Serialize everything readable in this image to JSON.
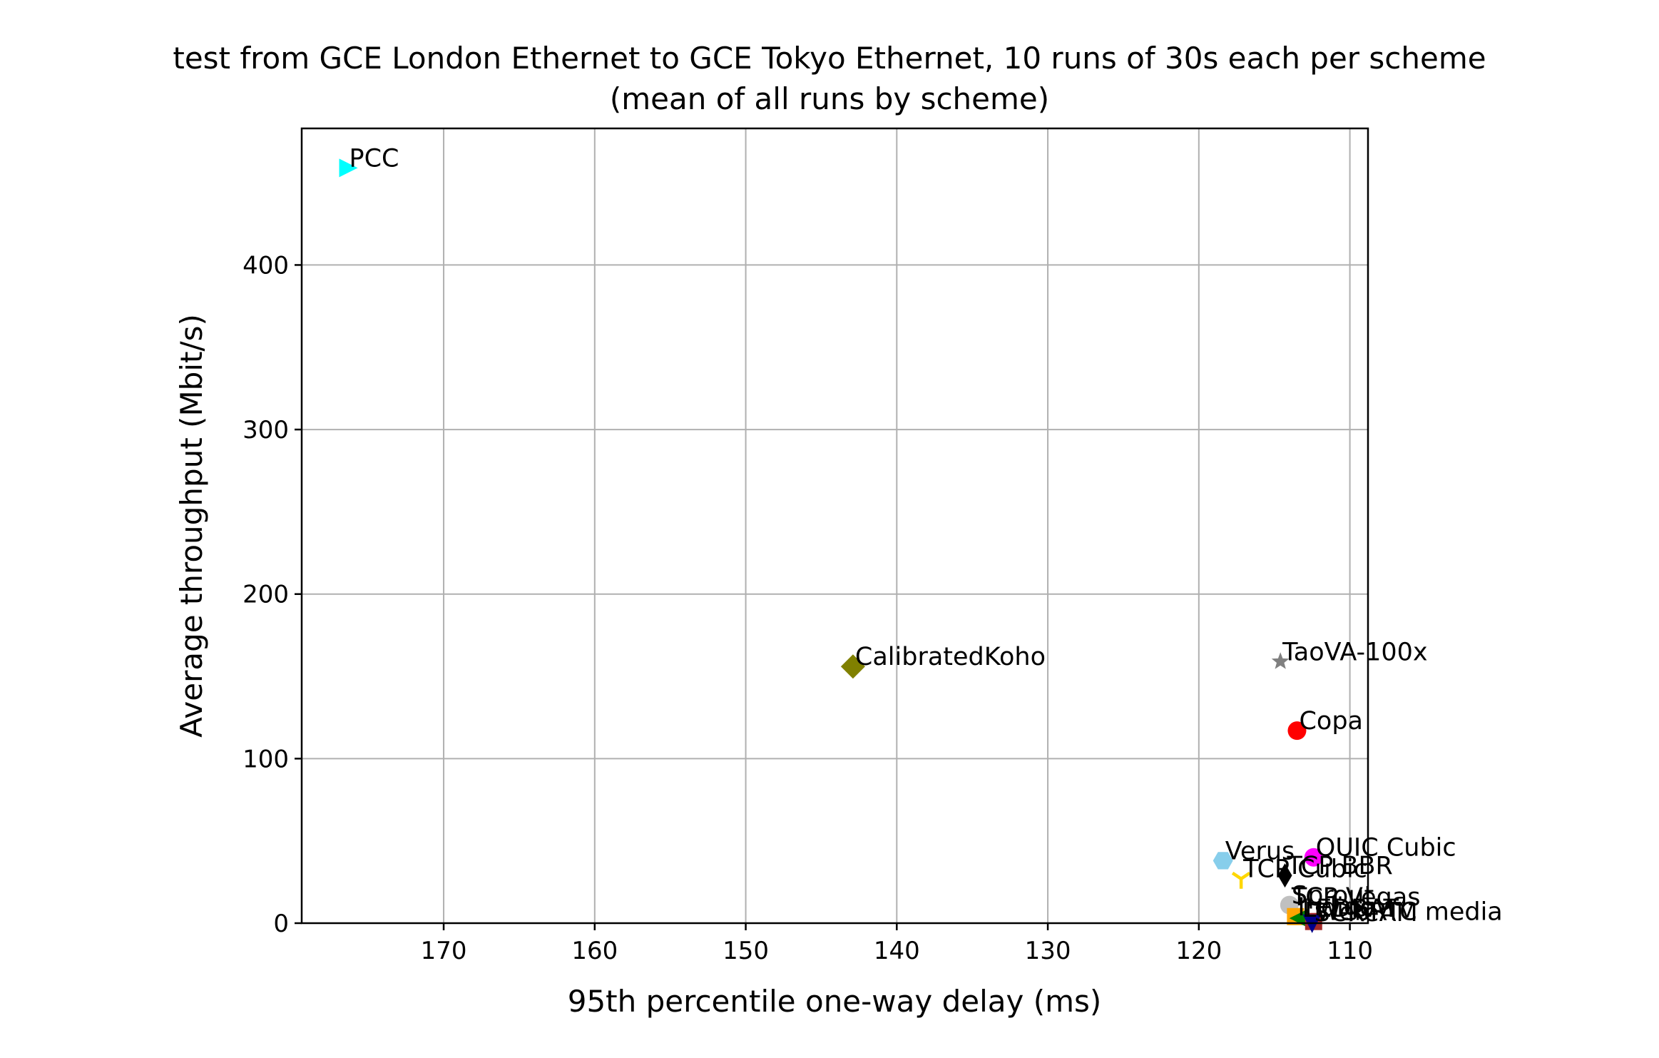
{
  "chart_data": {
    "type": "scatter",
    "title": "test from GCE London Ethernet to GCE Tokyo Ethernet, 10 runs of 30s each per scheme",
    "subtitle": "(mean of all runs by scheme)",
    "xlabel": "95th percentile one-way delay (ms)",
    "ylabel": "Average throughput (Mbit/s)",
    "x_inverted": true,
    "xlim": [
      179.4,
      108.8
    ],
    "ylim": [
      0,
      483
    ],
    "xticks": [
      170,
      160,
      150,
      140,
      130,
      120,
      110
    ],
    "yticks": [
      0,
      100,
      200,
      300,
      400
    ],
    "grid": true,
    "points": [
      {
        "label": "PCC",
        "x": 176.4,
        "y": 459,
        "marker": "triangle-right",
        "color": "#00ffff"
      },
      {
        "label": "CalibratedKoho",
        "x": 142.9,
        "y": 156,
        "marker": "diamond",
        "color": "#808000"
      },
      {
        "label": "TaoVA-100x",
        "x": 114.6,
        "y": 159,
        "marker": "star",
        "color": "#808080"
      },
      {
        "label": "Copa",
        "x": 113.5,
        "y": 117,
        "marker": "circle",
        "color": "#ff0000"
      },
      {
        "label": "QUIC Cubic",
        "x": 112.4,
        "y": 40,
        "marker": "circle",
        "color": "#ff00ff"
      },
      {
        "label": "Verus",
        "x": 118.4,
        "y": 38,
        "marker": "hexagon",
        "color": "#87ceeb"
      },
      {
        "label": "TCP Cubic",
        "x": 117.2,
        "y": 27,
        "marker": "tri-down",
        "color": "#ffd700"
      },
      {
        "label": "TCP BBR",
        "x": 114.3,
        "y": 29,
        "marker": "thin-diamond",
        "color": "#000000"
      },
      {
        "label": "TCP Vegas",
        "x": 114.0,
        "y": 10,
        "marker": "plus",
        "color": "#ffb6c1"
      },
      {
        "label": "Sprout",
        "x": 114.0,
        "y": 11,
        "marker": "circle",
        "color": "#c0c0c0"
      },
      {
        "label": "Indigo",
        "x": 113.6,
        "y": 4,
        "marker": "square",
        "color": "#ffa500"
      },
      {
        "label": "LEDBAT",
        "x": 113.3,
        "y": 3,
        "marker": "triangle-left",
        "color": "#008000"
      },
      {
        "label": "WebRTC media",
        "x": 112.4,
        "y": 1,
        "marker": "square",
        "color": "#a52a2a"
      },
      {
        "label": "SCReAM",
        "x": 112.5,
        "y": 0.5,
        "marker": "triangle-down",
        "color": "#00008b"
      }
    ]
  }
}
